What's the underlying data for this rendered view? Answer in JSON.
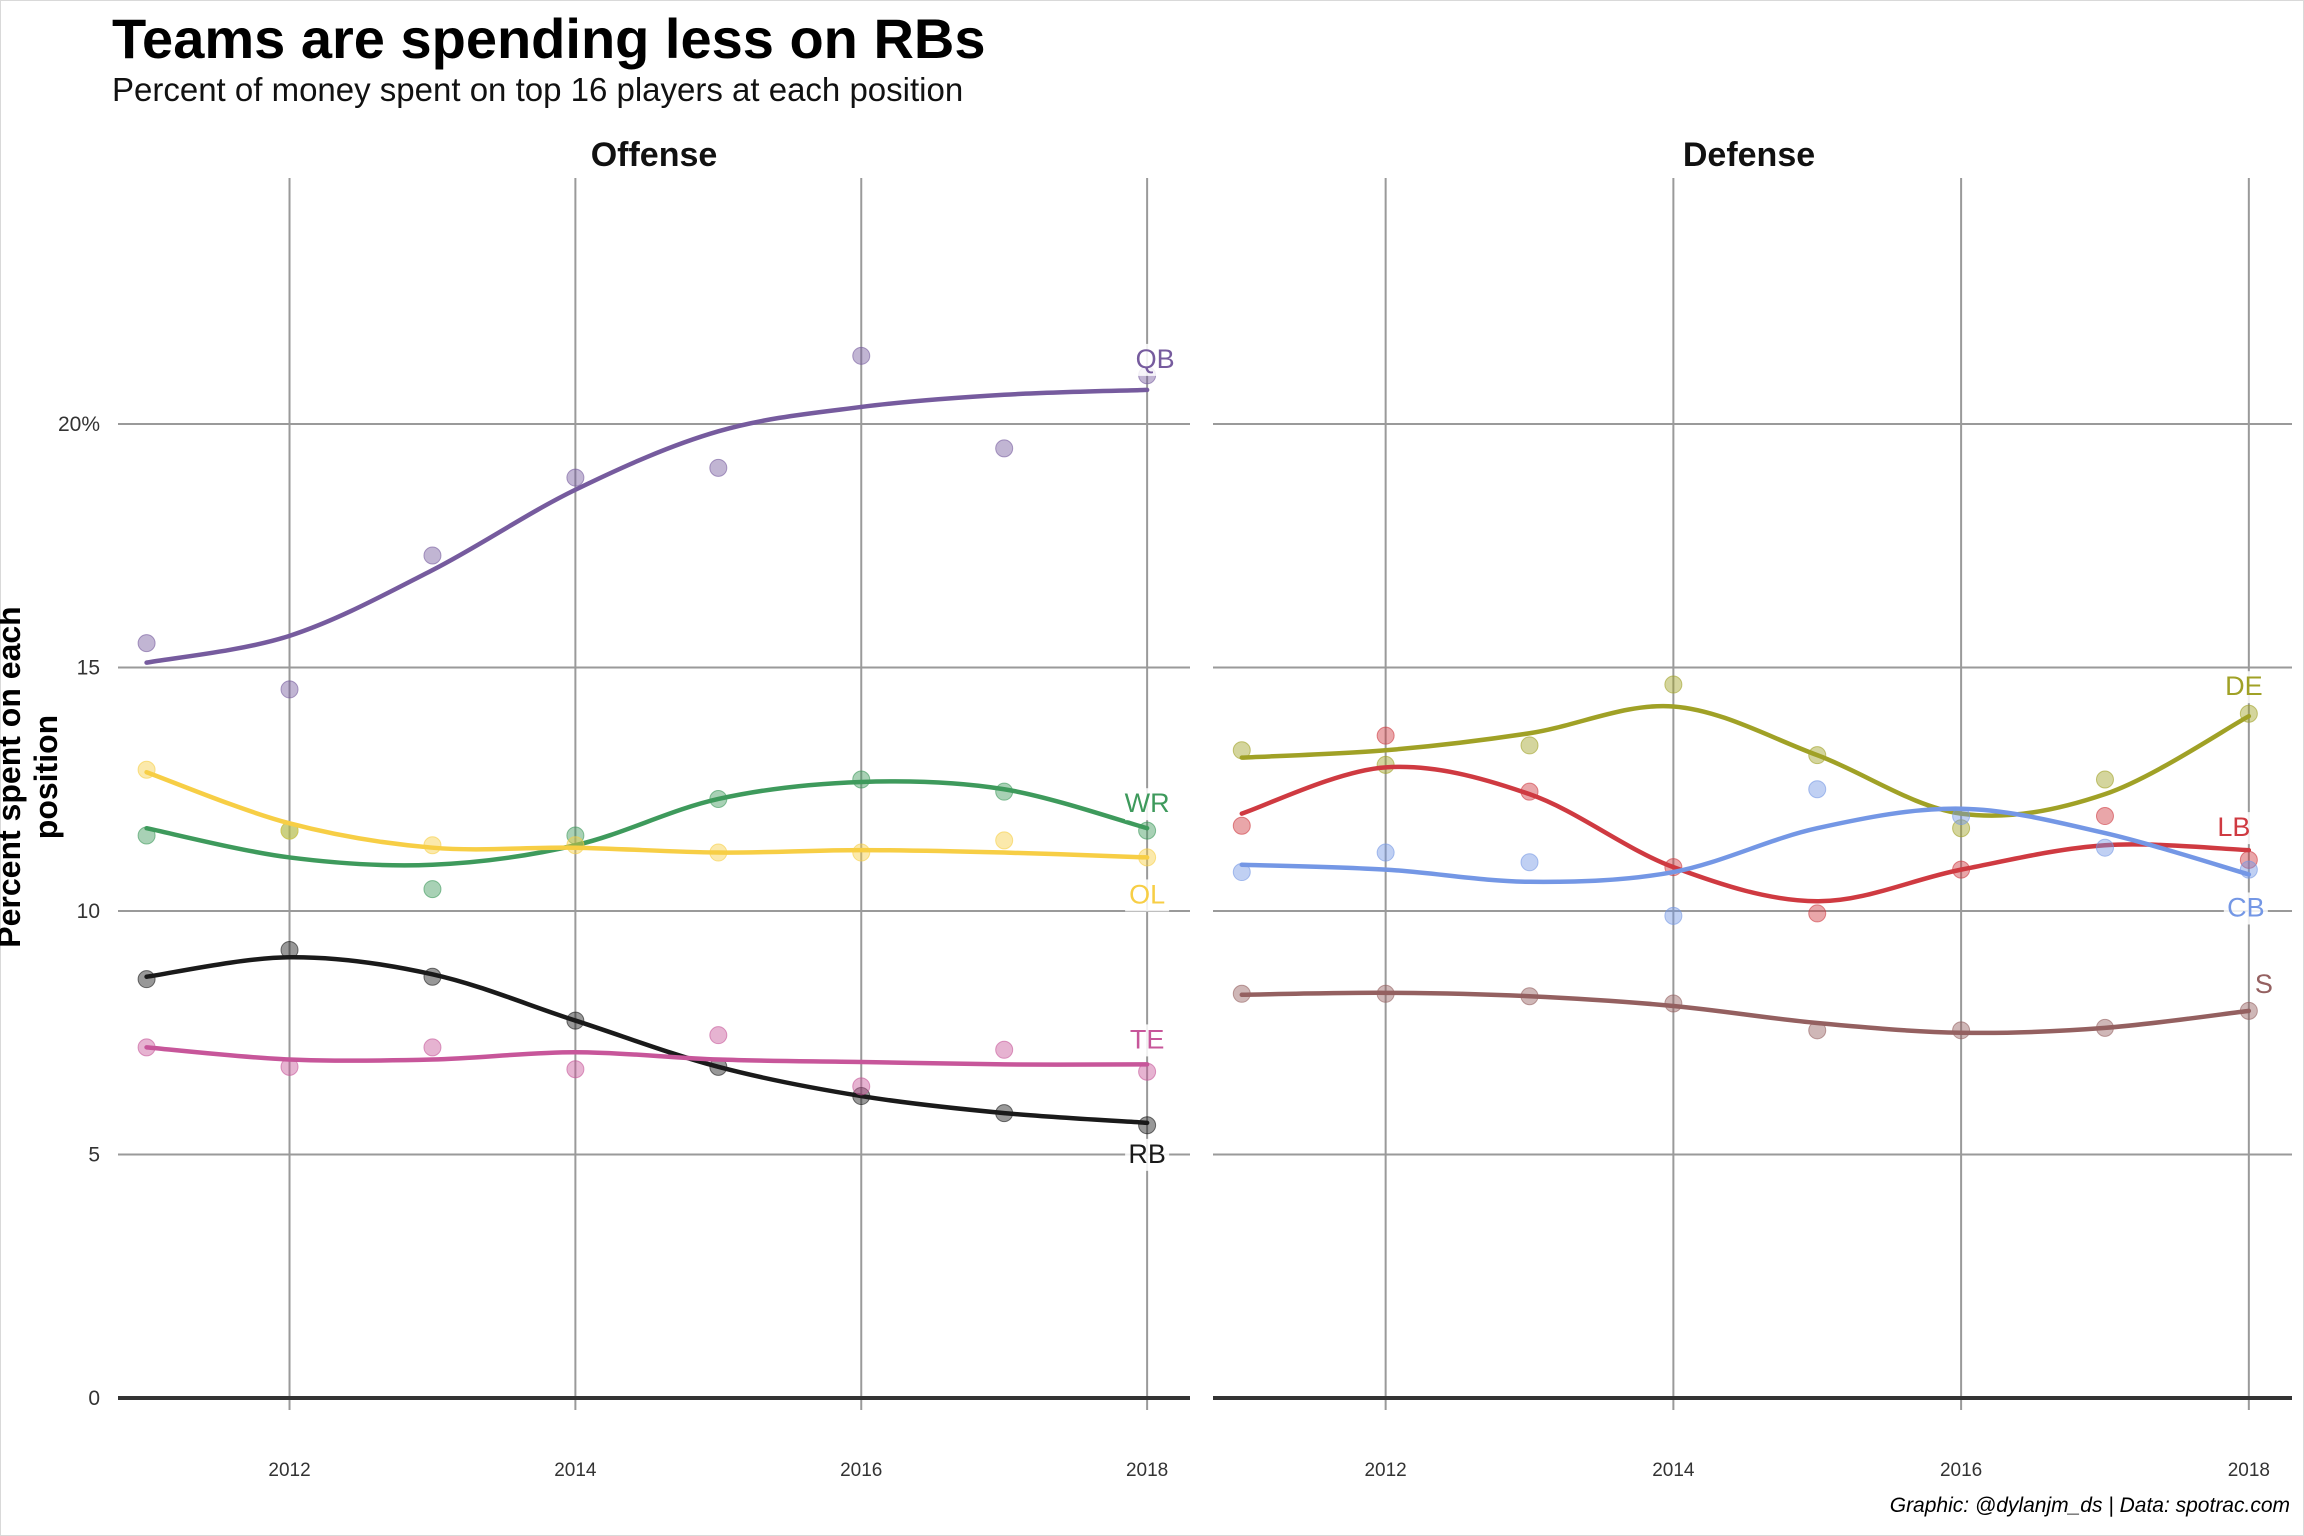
{
  "title": "Teams are spending less on RBs",
  "subtitle": "Percent of money spent on top 16 players at each position",
  "caption": "Graphic: @dylanjm_ds | Data: spotrac.com",
  "chart_data": {
    "type": "line",
    "ylabel": "Percent spent on each position",
    "ylim": [
      0,
      25
    ],
    "y_ticks": [
      0,
      5,
      10,
      15,
      20
    ],
    "y_tick_labels": [
      "0",
      "5",
      "10",
      "15",
      "20%"
    ],
    "xlim": [
      2010.8,
      2018.3
    ],
    "x_ticks": [
      2012,
      2014,
      2016,
      2018
    ],
    "x_tick_labels": [
      "2012",
      "2014",
      "2016",
      "2018"
    ],
    "grid": true,
    "panels": [
      {
        "name": "Offense",
        "series": [
          {
            "name": "QB",
            "color": "#765B9E",
            "x": [
              2011,
              2012,
              2013,
              2014,
              2015,
              2016,
              2017,
              2018
            ],
            "values": [
              15.5,
              14.55,
              17.3,
              18.9,
              19.1,
              21.4,
              19.5,
              21.0
            ],
            "smooth": [
              15.1,
              15.65,
              17.0,
              18.65,
              19.85,
              20.35,
              20.6,
              20.7
            ]
          },
          {
            "name": "WR",
            "color": "#3E9A5C",
            "x": [
              2011,
              2012,
              2013,
              2014,
              2015,
              2016,
              2017,
              2018
            ],
            "values": [
              11.55,
              11.65,
              10.45,
              11.55,
              12.3,
              12.7,
              12.45,
              11.65
            ],
            "smooth": [
              11.7,
              11.1,
              10.95,
              11.35,
              12.3,
              12.65,
              12.5,
              11.7
            ]
          },
          {
            "name": "OL",
            "color": "#F7CE45",
            "x": [
              2011,
              2012,
              2013,
              2014,
              2015,
              2016,
              2017,
              2018
            ],
            "values": [
              12.9,
              11.65,
              11.35,
              11.35,
              11.2,
              11.2,
              11.45,
              11.1
            ],
            "smooth": [
              12.85,
              11.8,
              11.3,
              11.3,
              11.2,
              11.25,
              11.2,
              11.1
            ]
          },
          {
            "name": "RB",
            "color": "#1A1A1A",
            "x": [
              2011,
              2012,
              2013,
              2014,
              2015,
              2016,
              2017,
              2018
            ],
            "values": [
              8.6,
              9.2,
              8.65,
              7.75,
              6.8,
              6.2,
              5.85,
              5.6
            ],
            "smooth": [
              8.65,
              9.05,
              8.7,
              7.75,
              6.8,
              6.2,
              5.85,
              5.65
            ]
          },
          {
            "name": "TE",
            "color": "#C7569A",
            "x": [
              2011,
              2012,
              2013,
              2014,
              2015,
              2016,
              2017,
              2018
            ],
            "values": [
              7.2,
              6.8,
              7.2,
              6.75,
              7.45,
              6.4,
              7.15,
              6.7
            ],
            "smooth": [
              7.2,
              6.95,
              6.95,
              7.1,
              6.95,
              6.9,
              6.85,
              6.85
            ]
          }
        ]
      },
      {
        "name": "Defense",
        "series": [
          {
            "name": "DE",
            "color": "#A0A126",
            "x": [
              2011,
              2012,
              2013,
              2014,
              2015,
              2016,
              2017,
              2018
            ],
            "values": [
              13.3,
              13.0,
              13.4,
              14.65,
              13.2,
              11.7,
              12.7,
              14.05
            ],
            "smooth": [
              13.15,
              13.3,
              13.65,
              14.2,
              13.2,
              12.0,
              12.4,
              14.0
            ]
          },
          {
            "name": "LB",
            "color": "#CF3A41",
            "x": [
              2011,
              2012,
              2013,
              2014,
              2015,
              2016,
              2017,
              2018
            ],
            "values": [
              11.75,
              13.6,
              12.45,
              10.9,
              9.95,
              10.85,
              11.95,
              11.05
            ],
            "smooth": [
              12.0,
              12.95,
              12.4,
              10.9,
              10.2,
              10.85,
              11.35,
              11.25
            ]
          },
          {
            "name": "CB",
            "color": "#7497E5",
            "x": [
              2011,
              2012,
              2013,
              2014,
              2015,
              2016,
              2017,
              2018
            ],
            "values": [
              10.8,
              11.2,
              11.0,
              9.9,
              12.5,
              11.95,
              11.3,
              10.85
            ],
            "smooth": [
              10.95,
              10.85,
              10.6,
              10.8,
              11.7,
              12.1,
              11.6,
              10.75
            ]
          },
          {
            "name": "S",
            "color": "#946060",
            "x": [
              2011,
              2012,
              2013,
              2014,
              2015,
              2016,
              2017,
              2018
            ],
            "values": [
              8.3,
              8.3,
              8.25,
              8.1,
              7.55,
              7.55,
              7.6,
              7.95
            ],
            "smooth": [
              8.28,
              8.32,
              8.25,
              8.05,
              7.7,
              7.5,
              7.6,
              7.95
            ]
          }
        ]
      }
    ]
  }
}
